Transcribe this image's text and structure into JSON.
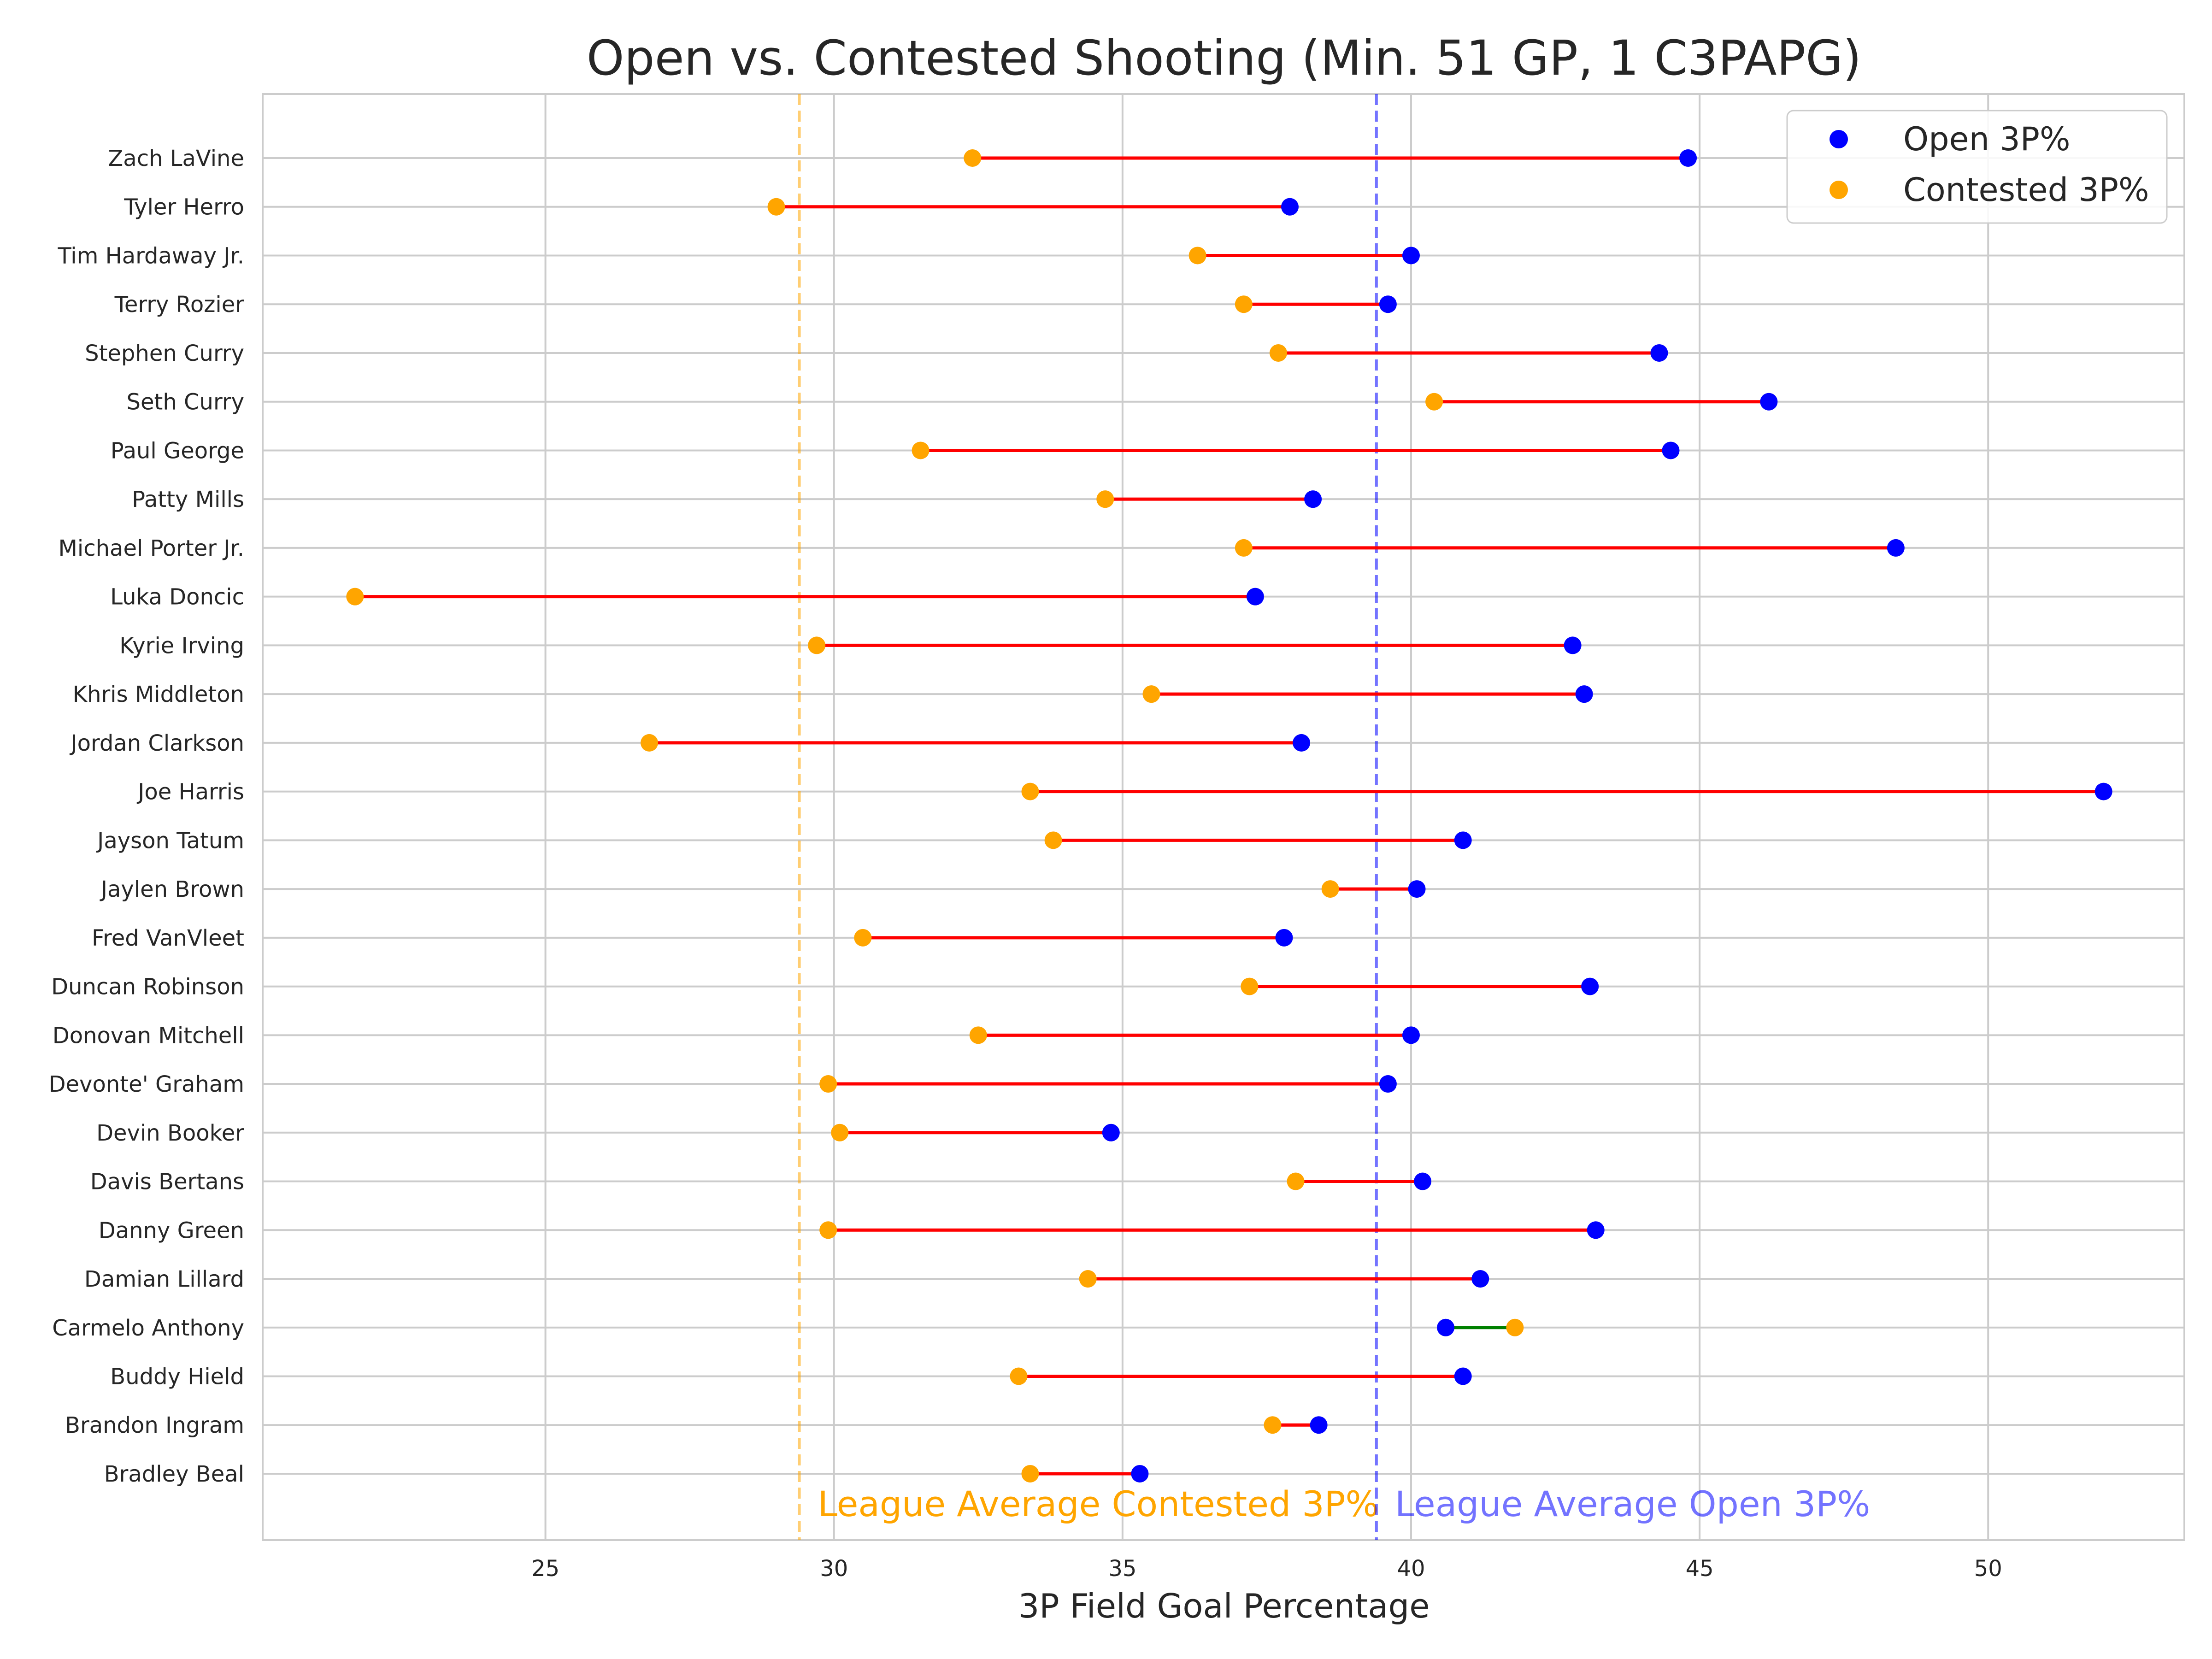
{
  "chart_data": {
    "type": "dumbbell",
    "title": "Open vs. Contested Shooting (Min. 51 GP, 1 C3PAPG)",
    "xlabel": "3P Field Goal Percentage",
    "ylabel": "",
    "xlim": [
      20.1,
      53.4
    ],
    "xticks": [
      25,
      30,
      35,
      40,
      45,
      50
    ],
    "grid": true,
    "legend_position": "top-right",
    "legend": [
      {
        "label": "Open 3P%",
        "color": "#0000ff"
      },
      {
        "label": "Contested 3P%",
        "color": "#ffa500"
      }
    ],
    "categories": [
      "Zach LaVine",
      "Tyler Herro",
      "Tim Hardaway Jr.",
      "Terry Rozier",
      "Stephen Curry",
      "Seth Curry",
      "Paul George",
      "Patty Mills",
      "Michael Porter Jr.",
      "Luka Doncic",
      "Kyrie Irving",
      "Khris Middleton",
      "Jordan Clarkson",
      "Joe Harris",
      "Jayson Tatum",
      "Jaylen Brown",
      "Fred VanVleet",
      "Duncan Robinson",
      "Donovan Mitchell",
      "Devonte' Graham",
      "Devin Booker",
      "Davis Bertans",
      "Danny Green",
      "Damian Lillard",
      "Carmelo Anthony",
      "Buddy Hield",
      "Brandon Ingram",
      "Bradley Beal"
    ],
    "series": [
      {
        "name": "Open 3P%",
        "color": "#0000ff",
        "values": [
          44.8,
          37.9,
          40.0,
          39.6,
          44.3,
          46.2,
          44.5,
          38.3,
          48.4,
          37.3,
          42.8,
          43.0,
          38.1,
          52.0,
          40.9,
          40.1,
          37.8,
          43.1,
          40.0,
          39.6,
          34.8,
          40.2,
          43.2,
          41.2,
          40.6,
          40.9,
          38.4,
          35.3
        ]
      },
      {
        "name": "Contested 3P%",
        "color": "#ffa500",
        "values": [
          32.4,
          29.0,
          36.3,
          37.1,
          37.7,
          40.4,
          31.5,
          34.7,
          37.1,
          21.7,
          29.7,
          35.5,
          26.8,
          33.4,
          33.8,
          38.6,
          30.5,
          37.2,
          32.5,
          29.9,
          30.1,
          38.0,
          29.9,
          34.4,
          41.8,
          33.2,
          37.6,
          33.4
        ]
      }
    ],
    "connector_colors": {
      "open_higher": "#ff0000",
      "contested_higher": "#008000"
    },
    "reference_lines": [
      {
        "label": "League Average Contested 3P%",
        "value": 29.4,
        "color": "#ffa500"
      },
      {
        "label": "League Average Open 3P%",
        "value": 39.4,
        "color": "#0000ff"
      }
    ]
  }
}
